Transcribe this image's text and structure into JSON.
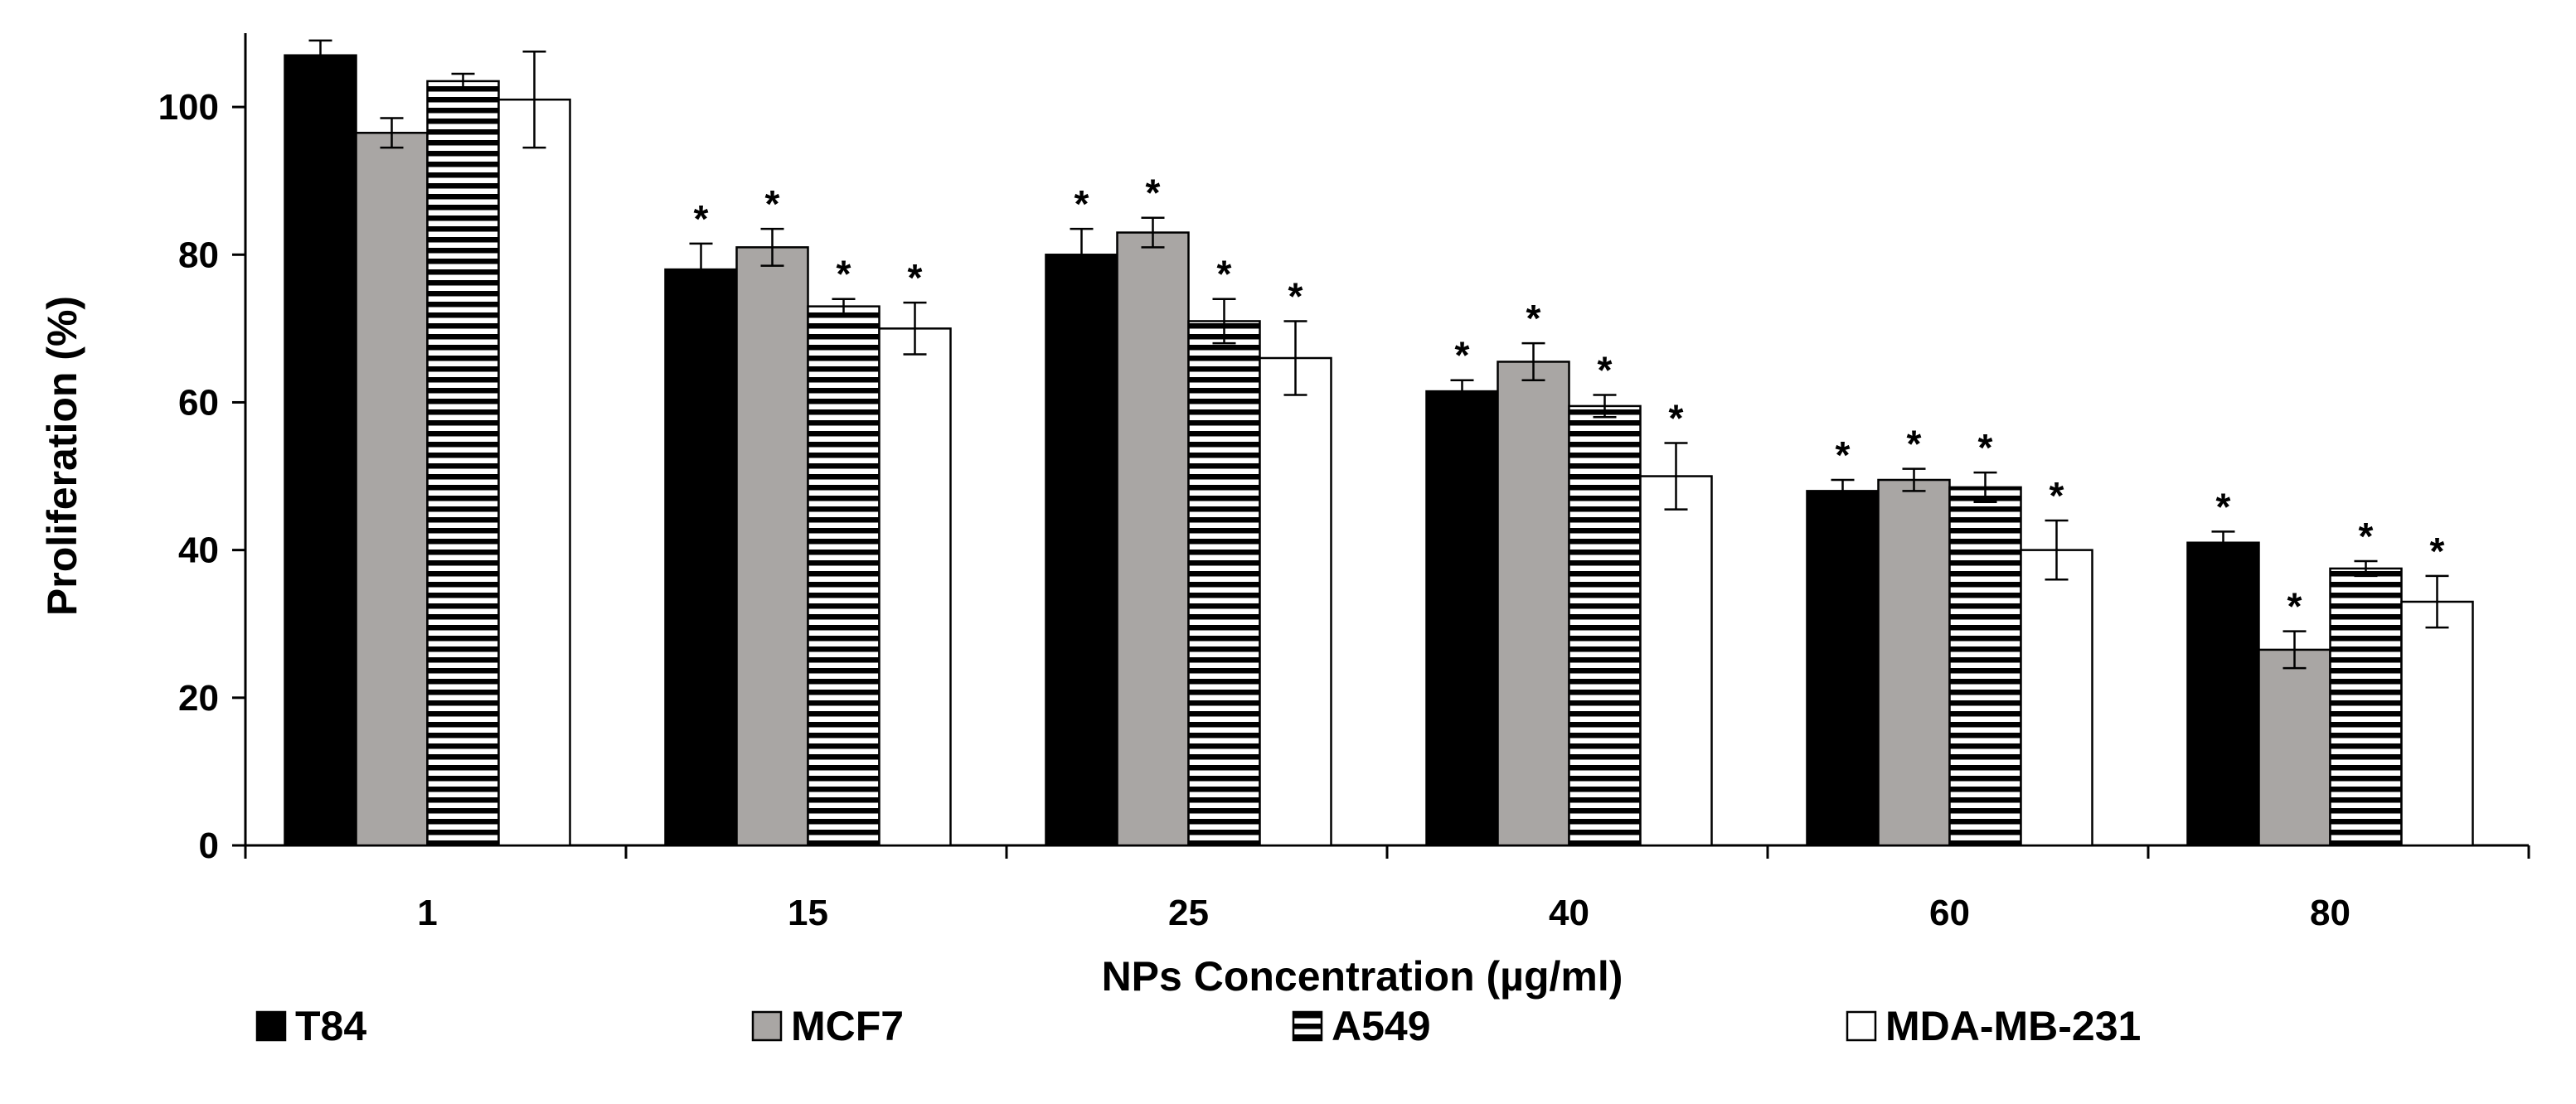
{
  "chart_data": {
    "type": "bar",
    "title": "",
    "xlabel": "NPs Concentration (µg/ml)",
    "ylabel": "Proliferation (%)",
    "ylim": [
      0,
      110
    ],
    "yticks": [
      "0",
      "20",
      "40",
      "60",
      "80",
      "100"
    ],
    "grid": false,
    "legend_position": "bottom",
    "categories": [
      "1",
      "15",
      "25",
      "40",
      "60",
      "80"
    ],
    "significance_marker": "*",
    "series": [
      {
        "name": "T84",
        "pattern": "solid-black",
        "values": [
          107,
          78,
          80,
          61.5,
          48,
          41
        ],
        "errors": [
          2,
          3.5,
          3.5,
          1.5,
          1.5,
          1.5
        ],
        "significant": [
          false,
          true,
          true,
          true,
          true,
          true
        ]
      },
      {
        "name": "MCF7",
        "pattern": "solid-gray",
        "values": [
          96.5,
          81,
          83,
          65.5,
          49.5,
          26.5
        ],
        "errors": [
          2,
          2.5,
          2,
          2.5,
          1.5,
          2.5
        ],
        "significant": [
          false,
          true,
          true,
          true,
          true,
          true
        ]
      },
      {
        "name": "A549",
        "pattern": "horizontal-stripes",
        "values": [
          103.5,
          73,
          71,
          59.5,
          48.5,
          37.5
        ],
        "errors": [
          1,
          1,
          3,
          1.5,
          2,
          1
        ],
        "significant": [
          false,
          true,
          true,
          true,
          true,
          true
        ]
      },
      {
        "name": "MDA-MB-231",
        "pattern": "white",
        "values": [
          101,
          70,
          66,
          50,
          40,
          33
        ],
        "errors": [
          6.5,
          3.5,
          5,
          4.5,
          4,
          3.5
        ],
        "significant": [
          false,
          true,
          true,
          true,
          true,
          true
        ]
      }
    ],
    "colors": {
      "T84": "#000000",
      "MCF7": "#a9a6a4",
      "A549": "#000000",
      "MDA-MB-231": "#ffffff"
    }
  }
}
